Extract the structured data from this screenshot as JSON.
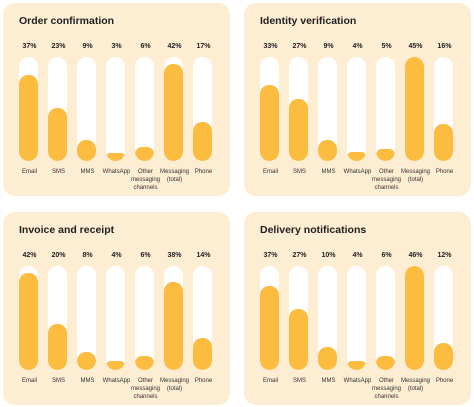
{
  "categories": [
    "Email",
    "SMS",
    "MMS",
    "WhatsApp",
    "Other\nmessaging\nchannels",
    "Messaging\n(total)",
    "Phone"
  ],
  "colors": {
    "panel": "#fdedd2",
    "fill": "#fbbc3f",
    "track": "#ffffff"
  },
  "panels": [
    {
      "title": "Order confirmation",
      "pct_labels": [
        "37%",
        "23%",
        "9%",
        "3%",
        "6%",
        "42%",
        "17%"
      ]
    },
    {
      "title": "Identity verification",
      "pct_labels": [
        "33%",
        "27%",
        "9%",
        "4%",
        "5%",
        "45%",
        "16%"
      ]
    },
    {
      "title": "Invoice and receipt",
      "pct_labels": [
        "42%",
        "20%",
        "8%",
        "4%",
        "6%",
        "38%",
        "14%"
      ]
    },
    {
      "title": "Delivery notifications",
      "pct_labels": [
        "37%",
        "27%",
        "10%",
        "4%",
        "6%",
        "46%",
        "12%"
      ]
    }
  ],
  "chart_data": [
    {
      "type": "bar",
      "title": "Order confirmation",
      "categories": [
        "Email",
        "SMS",
        "MMS",
        "WhatsApp",
        "Other messaging channels",
        "Messaging (total)",
        "Phone"
      ],
      "values": [
        37,
        23,
        9,
        3,
        6,
        42,
        17
      ],
      "unit": "%",
      "ylim": [
        0,
        45
      ]
    },
    {
      "type": "bar",
      "title": "Identity verification",
      "categories": [
        "Email",
        "SMS",
        "MMS",
        "WhatsApp",
        "Other messaging channels",
        "Messaging (total)",
        "Phone"
      ],
      "values": [
        33,
        27,
        9,
        4,
        5,
        45,
        16
      ],
      "unit": "%",
      "ylim": [
        0,
        45
      ]
    },
    {
      "type": "bar",
      "title": "Invoice and receipt",
      "categories": [
        "Email",
        "SMS",
        "MMS",
        "WhatsApp",
        "Other messaging channels",
        "Messaging (total)",
        "Phone"
      ],
      "values": [
        42,
        20,
        8,
        4,
        6,
        38,
        14
      ],
      "unit": "%",
      "ylim": [
        0,
        45
      ]
    },
    {
      "type": "bar",
      "title": "Delivery notifications",
      "categories": [
        "Email",
        "SMS",
        "MMS",
        "WhatsApp",
        "Other messaging channels",
        "Messaging (total)",
        "Phone"
      ],
      "values": [
        37,
        27,
        10,
        4,
        6,
        46,
        12
      ],
      "unit": "%",
      "ylim": [
        0,
        46
      ]
    }
  ]
}
